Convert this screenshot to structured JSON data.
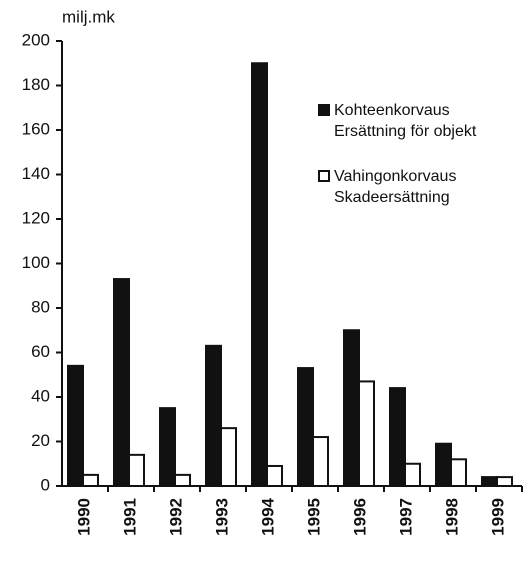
{
  "chart_data": {
    "type": "bar",
    "y_axis_label": "milj.mk",
    "categories": [
      "1990",
      "1991",
      "1992",
      "1993",
      "1994",
      "1995",
      "1996",
      "1997",
      "1998",
      "1999"
    ],
    "series": [
      {
        "name": "Kohteenkorvaus\nErsättning för objekt",
        "color": "#111111",
        "values": [
          54,
          93,
          35,
          63,
          190,
          53,
          70,
          44,
          19,
          4
        ]
      },
      {
        "name": "Vahingonkorvaus\nSkadeersättning",
        "color": "#ffffff",
        "values": [
          5,
          14,
          5,
          26,
          9,
          22,
          47,
          10,
          12,
          4
        ]
      }
    ],
    "ylim": [
      0,
      200
    ],
    "yticks": [
      0,
      20,
      40,
      60,
      80,
      100,
      120,
      140,
      160,
      180,
      200
    ],
    "grid": false,
    "legend": "upper right"
  }
}
